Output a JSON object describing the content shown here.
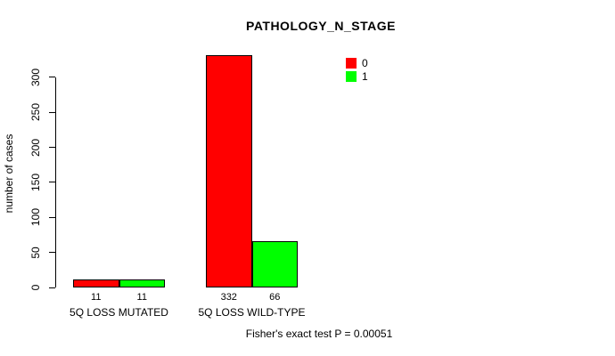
{
  "chart_data": {
    "type": "bar",
    "title": "PATHOLOGY_N_STAGE",
    "xlabel": "",
    "ylabel": "number of cases",
    "categories": [
      "5Q LOSS MUTATED",
      "5Q LOSS WILD-TYPE"
    ],
    "series": [
      {
        "name": "0",
        "color": "#ff0000",
        "values": [
          11,
          332
        ]
      },
      {
        "name": "1",
        "color": "#00ff00",
        "values": [
          11,
          66
        ]
      }
    ],
    "bar_value_labels": [
      [
        11,
        11
      ],
      [
        332,
        66
      ]
    ],
    "yticks": [
      0,
      50,
      100,
      150,
      200,
      250,
      300
    ],
    "ylim": [
      0,
      332
    ],
    "grid": false,
    "legend_position": "top-right",
    "legend_entries": [
      "0",
      "1"
    ],
    "annotation": "Fisher's exact test P = 0.00051"
  }
}
